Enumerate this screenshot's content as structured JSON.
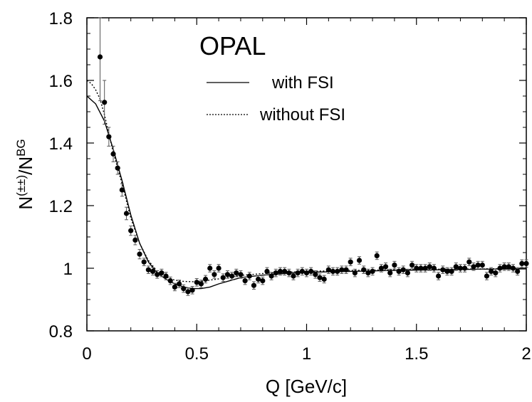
{
  "chart_data": {
    "type": "scatter",
    "experiment_label": "OPAL",
    "xlabel": "Q  [GeV/c]",
    "ylabel": {
      "base": "N",
      "sup1": "(±±)",
      "slash": "/N",
      "sup2": "BG"
    },
    "xlim": [
      0,
      2
    ],
    "ylim": [
      0.8,
      1.8
    ],
    "xticks": [
      0,
      0.5,
      1,
      1.5,
      2
    ],
    "xtick_labels": [
      "0",
      "0.5",
      "1",
      "1.5",
      "2"
    ],
    "yticks": [
      0.8,
      1.0,
      1.2,
      1.4,
      1.6,
      1.8
    ],
    "ytick_labels": [
      "0.8",
      "1",
      "1.2",
      "1.4",
      "1.6",
      "1.8"
    ],
    "legend": [
      {
        "label": "with FSI",
        "style": "solid"
      },
      {
        "label": "without FSI",
        "style": "dotted"
      }
    ],
    "series": [
      {
        "name": "data",
        "style": "points-with-errors",
        "x": [
          0.06,
          0.08,
          0.1,
          0.12,
          0.14,
          0.16,
          0.18,
          0.2,
          0.22,
          0.24,
          0.26,
          0.28,
          0.3,
          0.32,
          0.34,
          0.36,
          0.38,
          0.4,
          0.42,
          0.44,
          0.46,
          0.48,
          0.5,
          0.52,
          0.54,
          0.56,
          0.58,
          0.6,
          0.62,
          0.64,
          0.66,
          0.68,
          0.7,
          0.72,
          0.74,
          0.76,
          0.78,
          0.8,
          0.82,
          0.84,
          0.86,
          0.88,
          0.9,
          0.92,
          0.94,
          0.96,
          0.98,
          1.0,
          1.02,
          1.04,
          1.06,
          1.08,
          1.1,
          1.12,
          1.14,
          1.16,
          1.18,
          1.2,
          1.22,
          1.24,
          1.26,
          1.28,
          1.3,
          1.32,
          1.34,
          1.36,
          1.38,
          1.4,
          1.42,
          1.44,
          1.46,
          1.48,
          1.5,
          1.52,
          1.54,
          1.56,
          1.58,
          1.6,
          1.62,
          1.64,
          1.66,
          1.68,
          1.7,
          1.72,
          1.74,
          1.76,
          1.78,
          1.8,
          1.82,
          1.84,
          1.86,
          1.88,
          1.9,
          1.92,
          1.94,
          1.96,
          1.98,
          2.0
        ],
        "y": [
          1.675,
          1.53,
          1.42,
          1.365,
          1.32,
          1.25,
          1.175,
          1.12,
          1.09,
          1.045,
          1.02,
          0.995,
          0.99,
          0.98,
          0.985,
          0.975,
          0.96,
          0.94,
          0.95,
          0.935,
          0.925,
          0.93,
          0.955,
          0.95,
          0.965,
          1.0,
          0.98,
          1.0,
          0.97,
          0.98,
          0.975,
          0.985,
          0.98,
          0.96,
          0.975,
          0.945,
          0.965,
          0.96,
          0.99,
          0.975,
          0.985,
          0.99,
          0.99,
          0.985,
          0.975,
          0.985,
          0.99,
          0.985,
          0.99,
          0.98,
          0.97,
          0.965,
          0.995,
          0.99,
          0.99,
          0.995,
          0.995,
          1.02,
          0.985,
          1.025,
          0.995,
          0.985,
          0.99,
          1.04,
          1.0,
          1.005,
          0.985,
          1.01,
          0.99,
          0.995,
          0.985,
          1.01,
          1.0,
          1.0,
          1.0,
          1.005,
          1.0,
          0.975,
          0.995,
          0.99,
          0.99,
          1.005,
          1.0,
          1.0,
          1.02,
          1.005,
          1.01,
          1.01,
          0.975,
          0.99,
          0.985,
          1.0,
          1.005,
          1.005,
          1.0,
          0.99,
          1.015,
          1.015
        ],
        "err": [
          0.14,
          0.07,
          0.03,
          0.025,
          0.02,
          0.02,
          0.02,
          0.015,
          0.015,
          0.015,
          0.012,
          0.012,
          0.012,
          0.012,
          0.012,
          0.012,
          0.012,
          0.012,
          0.012,
          0.012,
          0.012,
          0.012,
          0.012,
          0.012,
          0.012,
          0.012,
          0.012,
          0.012,
          0.012,
          0.012,
          0.012,
          0.012,
          0.012,
          0.012,
          0.012,
          0.012,
          0.012,
          0.012,
          0.012,
          0.012,
          0.012,
          0.012,
          0.012,
          0.012,
          0.012,
          0.012,
          0.012,
          0.012,
          0.012,
          0.012,
          0.012,
          0.012,
          0.012,
          0.012,
          0.012,
          0.012,
          0.012,
          0.012,
          0.012,
          0.012,
          0.012,
          0.012,
          0.012,
          0.012,
          0.012,
          0.012,
          0.012,
          0.012,
          0.012,
          0.012,
          0.012,
          0.012,
          0.012,
          0.012,
          0.012,
          0.012,
          0.012,
          0.012,
          0.012,
          0.012,
          0.012,
          0.012,
          0.012,
          0.012,
          0.012,
          0.012,
          0.012,
          0.012,
          0.012,
          0.012,
          0.012,
          0.012,
          0.012,
          0.012,
          0.012,
          0.012,
          0.012,
          0.012
        ]
      },
      {
        "name": "with FSI",
        "style": "solid",
        "x": [
          0.0,
          0.04,
          0.08,
          0.12,
          0.16,
          0.2,
          0.24,
          0.28,
          0.32,
          0.36,
          0.4,
          0.44,
          0.48,
          0.52,
          0.56,
          0.6,
          0.65,
          0.7,
          0.8,
          0.9,
          1.0,
          1.2,
          1.4,
          1.6,
          1.8,
          2.0
        ],
        "y": [
          1.55,
          1.525,
          1.47,
          1.38,
          1.28,
          1.17,
          1.08,
          1.02,
          0.985,
          0.965,
          0.95,
          0.94,
          0.935,
          0.935,
          0.94,
          0.95,
          0.96,
          0.97,
          0.978,
          0.983,
          0.987,
          0.99,
          0.993,
          0.995,
          0.997,
          0.998
        ]
      },
      {
        "name": "without FSI",
        "style": "dotted",
        "x": [
          0.0,
          0.02,
          0.04,
          0.06,
          0.08,
          0.12,
          0.16,
          0.2,
          0.24,
          0.28,
          0.32,
          0.36,
          0.4,
          0.44,
          0.48,
          0.52,
          0.56,
          0.6,
          0.65,
          0.7,
          0.8,
          0.9,
          1.0,
          1.2,
          1.4,
          1.6,
          1.8,
          2.0
        ],
        "y": [
          1.6,
          1.59,
          1.57,
          1.54,
          1.49,
          1.37,
          1.27,
          1.16,
          1.08,
          1.025,
          0.99,
          0.972,
          0.962,
          0.958,
          0.957,
          0.958,
          0.962,
          0.966,
          0.972,
          0.977,
          0.983,
          0.987,
          0.99,
          0.993,
          0.995,
          0.997,
          0.998,
          0.999
        ]
      }
    ]
  }
}
